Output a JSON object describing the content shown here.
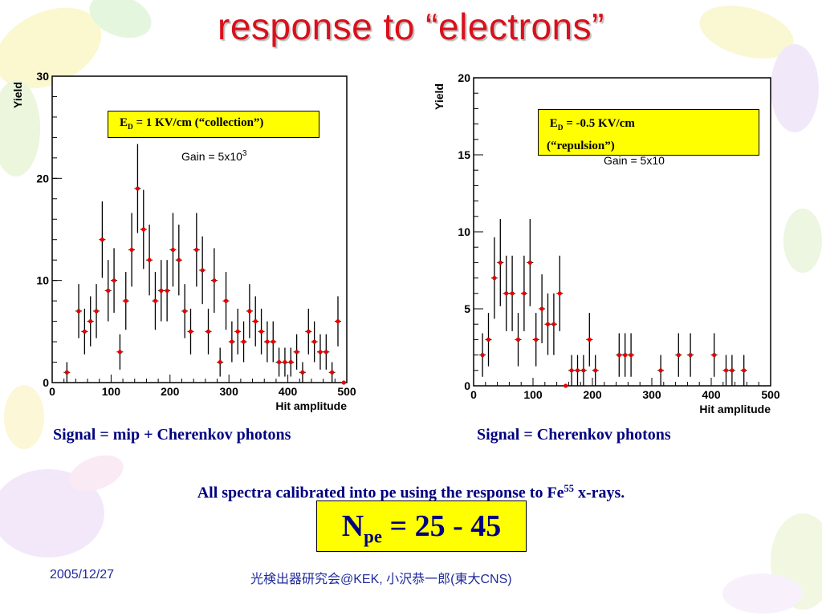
{
  "title": "response to “electrons”",
  "chart_data": [
    {
      "type": "scatter",
      "ylabel": "Yield",
      "xlabel": "Hit amplitude",
      "xlim": [
        0,
        500
      ],
      "ylim": [
        0,
        30
      ],
      "xticks": [
        "0",
        "100",
        "200",
        "300",
        "400",
        "500"
      ],
      "yticks": [
        "0",
        "10",
        "20",
        "30"
      ],
      "grid": false,
      "error_bars": true,
      "series": [
        {
          "x": [
            25,
            45,
            55,
            65,
            75,
            85,
            95,
            105,
            115,
            125,
            135,
            145,
            155,
            165,
            175,
            185,
            195,
            205,
            215,
            225,
            235,
            245,
            255,
            265,
            275,
            285,
            295,
            305,
            315,
            325,
            335,
            345,
            355,
            365,
            375,
            385,
            395,
            405,
            415,
            425,
            435,
            445,
            455,
            465,
            475,
            485,
            495
          ],
          "y": [
            1,
            7,
            5,
            6,
            7,
            14,
            9,
            10,
            3,
            8,
            13,
            19,
            15,
            12,
            8,
            9,
            9,
            13,
            12,
            7,
            5,
            13,
            11,
            5,
            10,
            2,
            8,
            4,
            5,
            4,
            7,
            6,
            5,
            4,
            4,
            2,
            2,
            2,
            3,
            1,
            5,
            4,
            3,
            3,
            1,
            6,
            0
          ]
        }
      ],
      "annotation_box": {
        "prefix": "E",
        "sub": "D",
        "text": " = 1 KV/cm (“collection”)"
      },
      "gain": {
        "text": "Gain = 5x10",
        "sup": "3"
      }
    },
    {
      "type": "scatter",
      "ylabel": "Yield",
      "xlabel": "Hit amplitude",
      "xlim": [
        0,
        500
      ],
      "ylim": [
        0,
        20
      ],
      "xticks": [
        "0",
        "100",
        "200",
        "300",
        "400",
        "500"
      ],
      "yticks": [
        "0",
        "5",
        "10",
        "15",
        "20"
      ],
      "grid": false,
      "error_bars": true,
      "series": [
        {
          "x": [
            15,
            25,
            35,
            45,
            55,
            65,
            75,
            85,
            95,
            105,
            115,
            125,
            135,
            145,
            155,
            165,
            175,
            185,
            195,
            205,
            245,
            255,
            265,
            315,
            345,
            365,
            405,
            425,
            435,
            455
          ],
          "y": [
            2,
            3,
            7,
            8,
            6,
            6,
            3,
            6,
            8,
            3,
            5,
            4,
            4,
            6,
            0,
            1,
            1,
            1,
            3,
            1,
            2,
            2,
            2,
            1,
            2,
            2,
            2,
            1,
            1,
            1
          ]
        }
      ],
      "annotation_box": {
        "prefix": "E",
        "sub": "D",
        "text": " = -0.5 KV/cm",
        "line2": "(“repulsion”)"
      },
      "gain": {
        "text": "Gain = 5x10"
      }
    }
  ],
  "captions": {
    "left": "Signal = mip  + Cherenkov photons",
    "right": "Signal = Cherenkov photons"
  },
  "calibration": {
    "text": "All spectra calibrated into pe using the response to Fe",
    "sup": "55",
    "suffix": " x-rays."
  },
  "npe": {
    "prefix": "N",
    "sub": "pe",
    "text": " = 25 - 45"
  },
  "footer": {
    "date": "2005/12/27",
    "event": "光検出器研究会@KEK, 小沢恭一郎(東大CNS)"
  },
  "colors": {
    "title": "#d8111c",
    "marker": "#e60000",
    "highlight": "#ffff00",
    "caption": "#000080"
  }
}
